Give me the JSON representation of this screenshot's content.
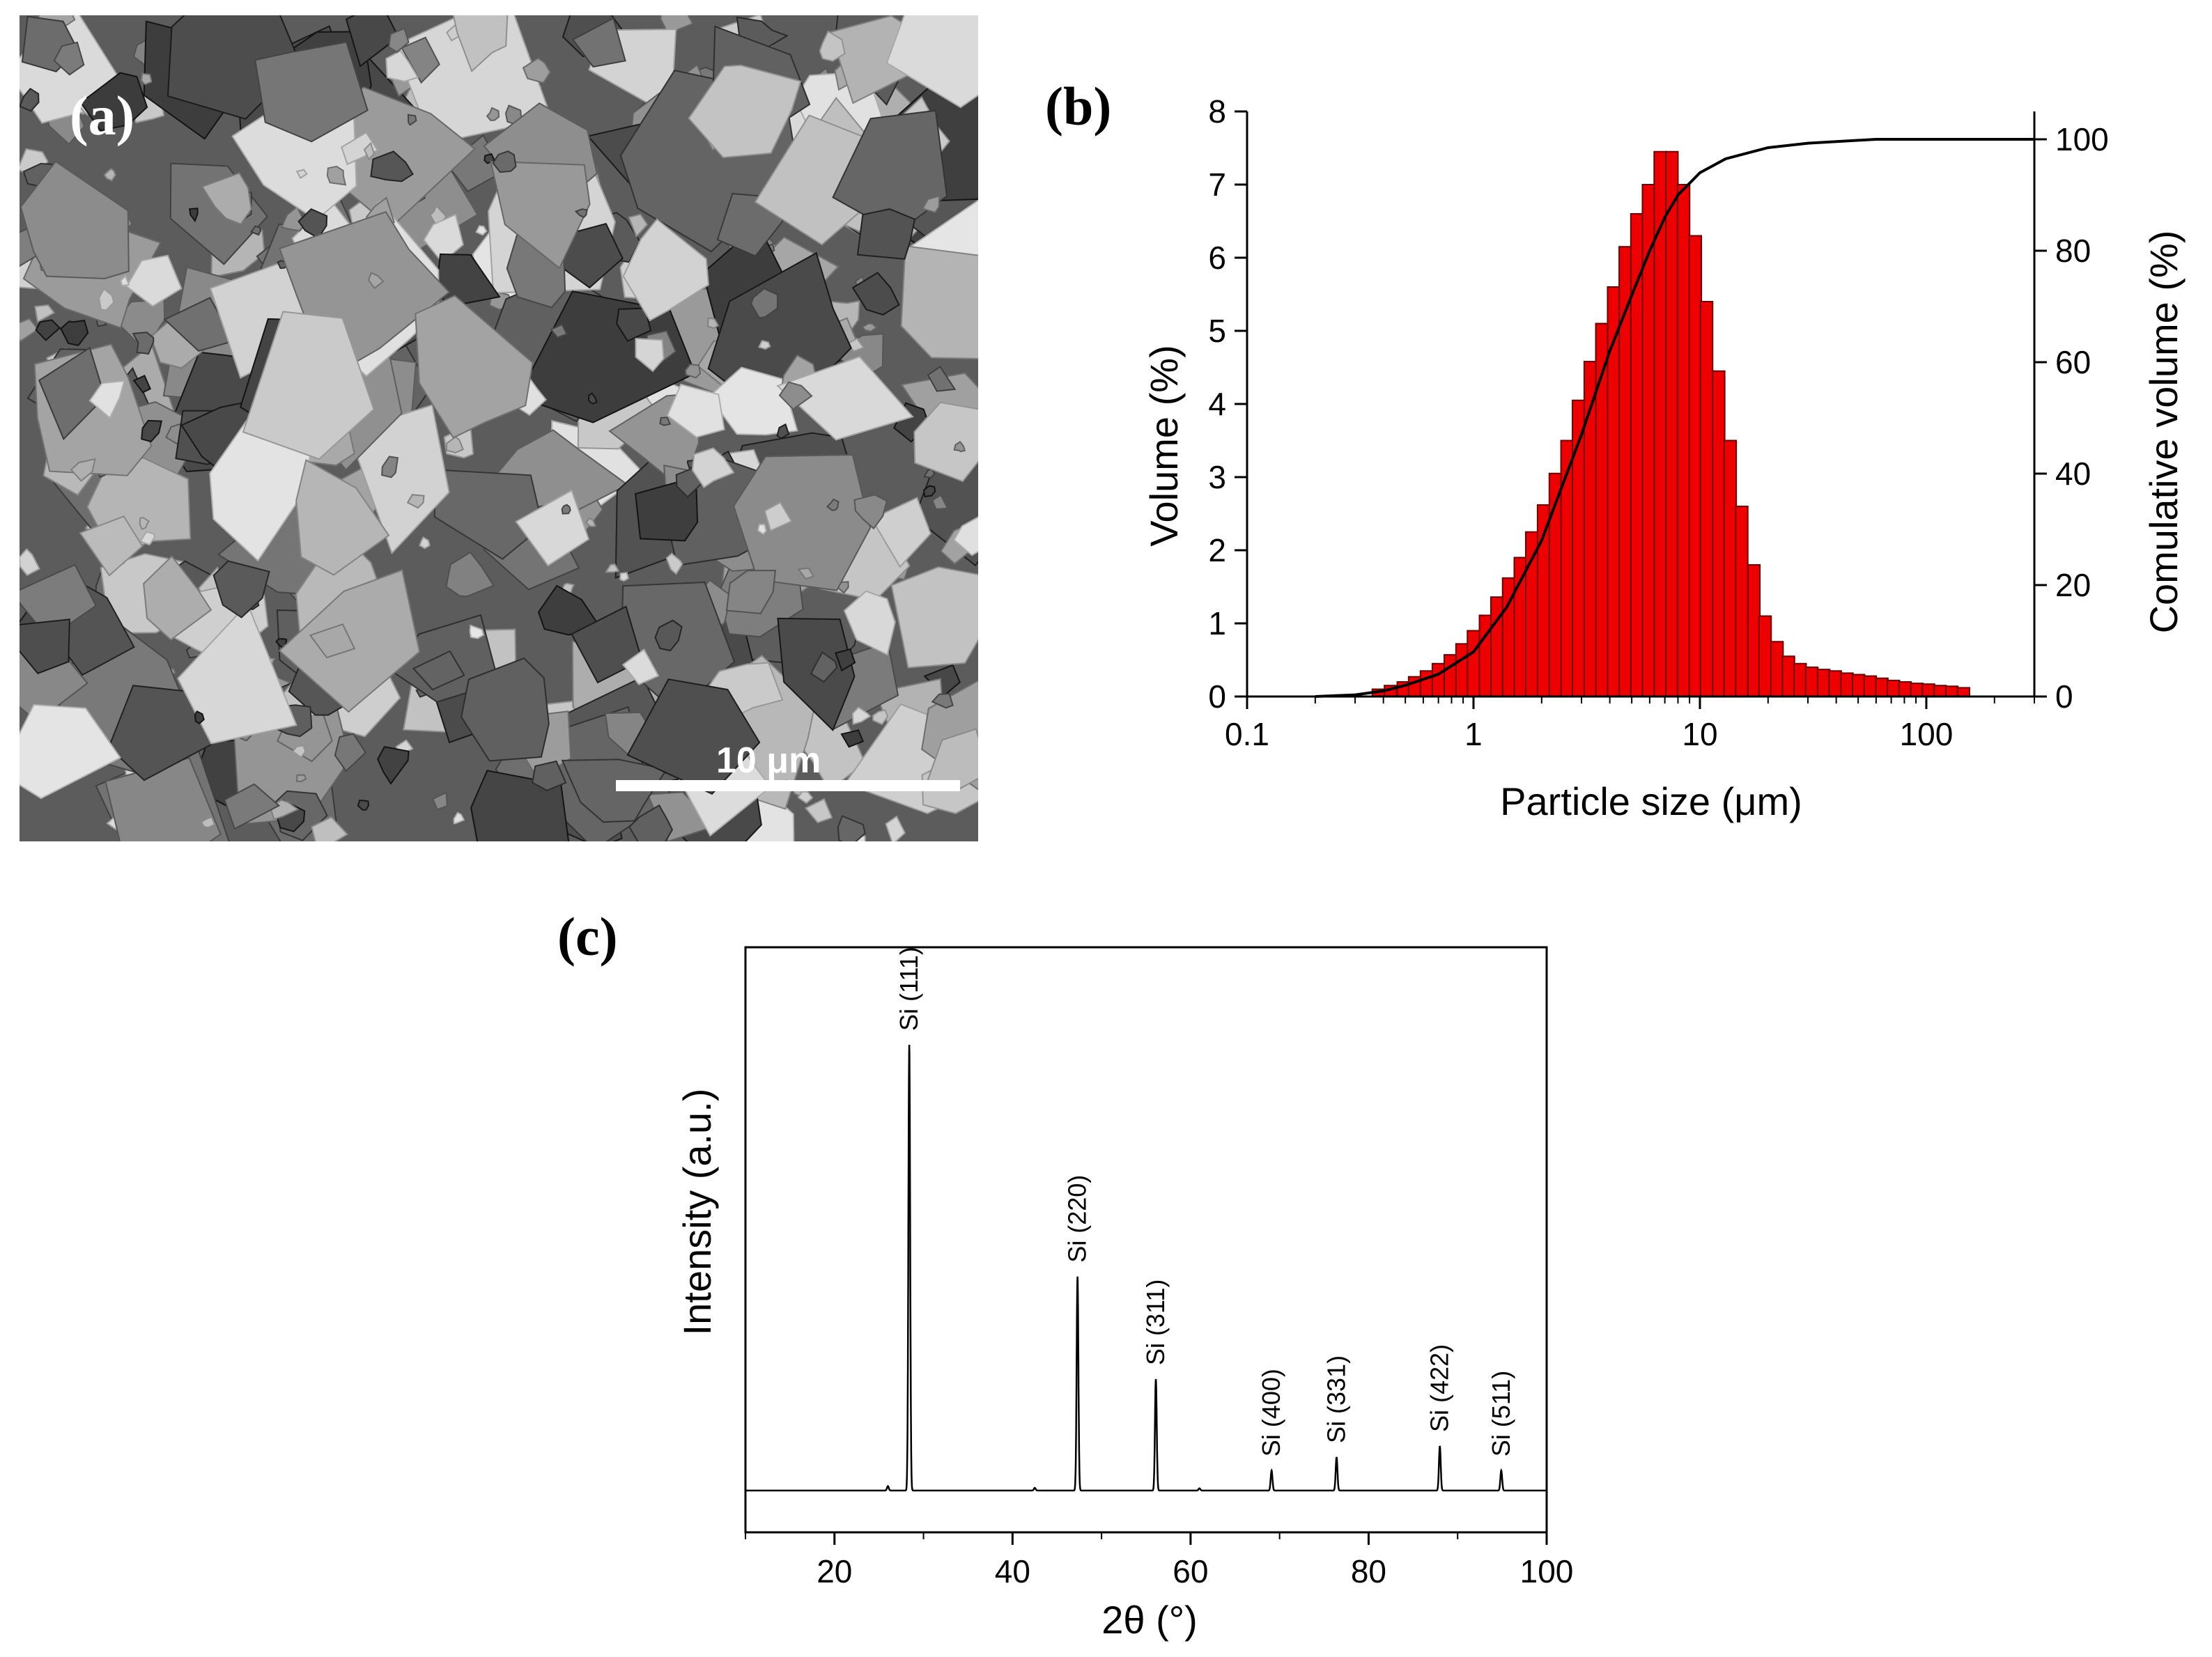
{
  "panels": {
    "a": {
      "label": "(a)",
      "scale_bar": "10 μm"
    },
    "b": {
      "label": "(b)"
    },
    "c": {
      "label": "(c)"
    }
  },
  "colors": {
    "bar_fill": "#ee0000",
    "bar_stroke": "#6a0000",
    "line": "#000000"
  },
  "chart_data": [
    {
      "panel": "b",
      "type": "bar",
      "xlabel": "Particle size (μm)",
      "ylabel": "Volume (%)",
      "ylabel_right": "Comulative volume (%)",
      "xscale": "log",
      "xlim": [
        0.1,
        300
      ],
      "ylim": [
        0,
        8
      ],
      "ylim_right": [
        0,
        105
      ],
      "x_ticks": [
        "0.1",
        "1",
        "10",
        "100"
      ],
      "y_ticks": [
        "0",
        "1",
        "2",
        "3",
        "4",
        "5",
        "6",
        "7",
        "8"
      ],
      "y_ticks_right": [
        "0",
        "20",
        "40",
        "60",
        "80",
        "100"
      ],
      "bins": [
        0.38,
        0.43,
        0.49,
        0.55,
        0.62,
        0.7,
        0.79,
        0.89,
        1.0,
        1.13,
        1.27,
        1.43,
        1.61,
        1.81,
        2.04,
        2.3,
        2.59,
        2.91,
        3.28,
        3.69,
        4.16,
        4.68,
        5.27,
        5.93,
        6.68,
        7.52,
        8.47,
        9.54,
        10.7,
        12.1,
        13.6,
        15.3,
        17.3,
        19.4,
        21.9,
        24.6,
        27.7,
        31.2,
        35.2,
        39.6,
        44.6,
        50.2,
        56.5,
        63.6,
        71.6,
        80.6,
        90.8,
        102.2,
        115.1,
        129.6,
        145.9
      ],
      "values": [
        0.1,
        0.15,
        0.2,
        0.27,
        0.35,
        0.45,
        0.57,
        0.72,
        0.9,
        1.11,
        1.36,
        1.62,
        1.9,
        2.25,
        2.62,
        3.05,
        3.5,
        4.05,
        4.58,
        5.1,
        5.6,
        6.15,
        6.6,
        7.0,
        7.45,
        7.45,
        7.0,
        6.3,
        5.4,
        4.45,
        3.5,
        2.6,
        1.8,
        1.1,
        0.75,
        0.55,
        0.45,
        0.4,
        0.37,
        0.35,
        0.32,
        0.3,
        0.28,
        0.25,
        0.22,
        0.2,
        0.18,
        0.17,
        0.15,
        0.14,
        0.12
      ],
      "cumulative": {
        "x": [
          0.2,
          0.3,
          0.4,
          0.5,
          0.7,
          1.0,
          1.4,
          2.0,
          3.0,
          4.0,
          5.0,
          6.0,
          7.0,
          8.0,
          10.0,
          13.0,
          20.0,
          30.0,
          60.0,
          100.0,
          300.0
        ],
        "y": [
          0,
          0.3,
          1,
          2,
          4,
          8,
          16,
          28,
          47,
          62,
          72,
          80,
          86,
          90,
          94,
          96.5,
          98.5,
          99.3,
          100,
          100,
          100
        ]
      }
    },
    {
      "panel": "c",
      "type": "line",
      "xlabel": "2θ (°)",
      "ylabel": "Intensity (a.u.)",
      "xlim": [
        10,
        100
      ],
      "x_ticks": [
        "20",
        "40",
        "60",
        "80",
        "100"
      ],
      "baseline": 0.1,
      "peaks": [
        {
          "x": 28.4,
          "y": 1.0,
          "label": "Si (111)"
        },
        {
          "x": 47.3,
          "y": 0.48,
          "label": "Si (220)"
        },
        {
          "x": 56.1,
          "y": 0.25,
          "label": "Si (311)"
        },
        {
          "x": 69.1,
          "y": 0.045,
          "label": "Si (400)"
        },
        {
          "x": 76.4,
          "y": 0.075,
          "label": "Si (331)"
        },
        {
          "x": 88.0,
          "y": 0.1,
          "label": "Si (422)"
        },
        {
          "x": 94.9,
          "y": 0.045,
          "label": "Si (511)"
        }
      ],
      "minor_peaks": [
        {
          "x": 26.0,
          "y": 0.01
        },
        {
          "x": 42.5,
          "y": 0.006
        },
        {
          "x": 61.0,
          "y": 0.005
        }
      ]
    }
  ]
}
